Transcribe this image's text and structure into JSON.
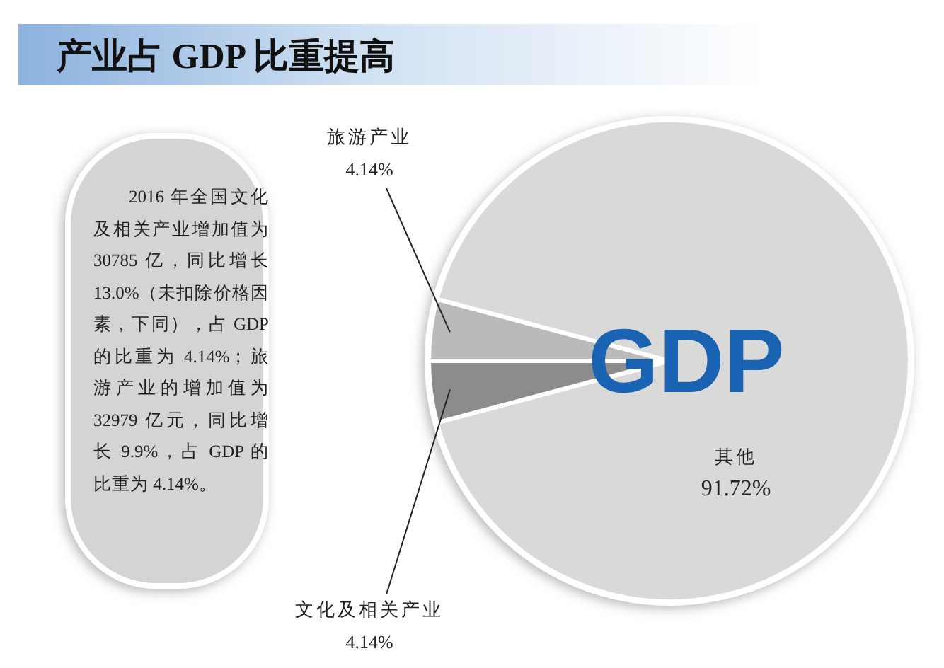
{
  "chart_data": {
    "type": "pie",
    "title": "产业占 GDP 比重提高",
    "categories": [
      "旅游产业",
      "其他",
      "文化及相关产业"
    ],
    "values": [
      4.14,
      91.72,
      4.14
    ],
    "colors": [
      "#bababa",
      "#d9d9d9",
      "#8c8c8c"
    ],
    "value_labels": [
      "4.14%",
      "91.72%",
      "4.14%"
    ],
    "legend": false,
    "annotations": [
      "2016 年全国文化及相关产业增加值为 30785 亿，同比增长 13.0%（未扣除价格因素，下同），占 GDP 的比重为 4.14%；旅游产业的增加值为 32979 亿元，同比增长 9.9%，占 GDP 的比重为 4.14%。",
      "GDP"
    ]
  }
}
